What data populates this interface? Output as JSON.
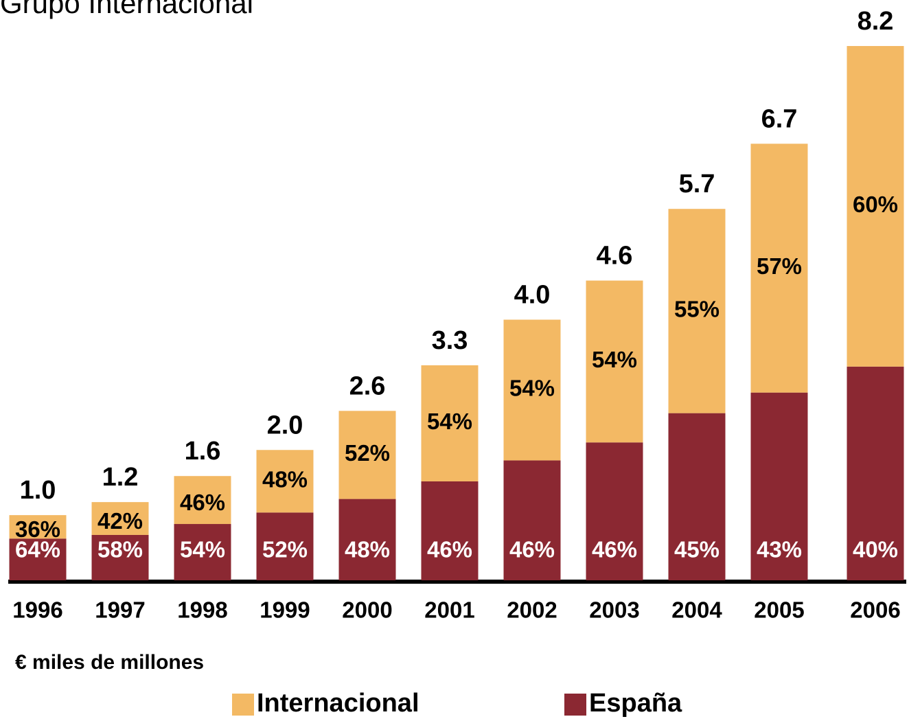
{
  "chart_data": {
    "type": "bar",
    "title": "Grupo Internacional",
    "note": "€ miles de millones",
    "categories": [
      "1996",
      "1997",
      "1998",
      "1999",
      "2000",
      "2001",
      "2002",
      "2003",
      "2004",
      "2005",
      "2006"
    ],
    "totals": {
      "values": [
        1.0,
        1.2,
        1.6,
        2.0,
        2.6,
        3.3,
        4.0,
        4.6,
        5.7,
        6.7,
        8.2
      ],
      "value_labels": [
        "1.0",
        "1.2",
        "1.6",
        "2.0",
        "2.6",
        "3.3",
        "4.0",
        "4.6",
        "5.7",
        "6.7",
        "8.2"
      ]
    },
    "series": [
      {
        "name": "España",
        "color": "#8b2832",
        "label_color": "#ffffff",
        "values": [
          64,
          58,
          54,
          52,
          48,
          46,
          46,
          46,
          45,
          43,
          40
        ],
        "value_labels": [
          "64%",
          "58%",
          "54%",
          "52%",
          "48%",
          "46%",
          "46%",
          "46%",
          "45%",
          "43%",
          "40%"
        ]
      },
      {
        "name": "Internacional",
        "color": "#f3b964",
        "label_color": "#000000",
        "values": [
          36,
          42,
          46,
          48,
          52,
          54,
          54,
          54,
          55,
          57,
          60
        ],
        "value_labels": [
          "36%",
          "42%",
          "46%",
          "48%",
          "52%",
          "54%",
          "54%",
          "54%",
          "55%",
          "57%",
          "60%"
        ]
      }
    ],
    "stacked": true
  }
}
